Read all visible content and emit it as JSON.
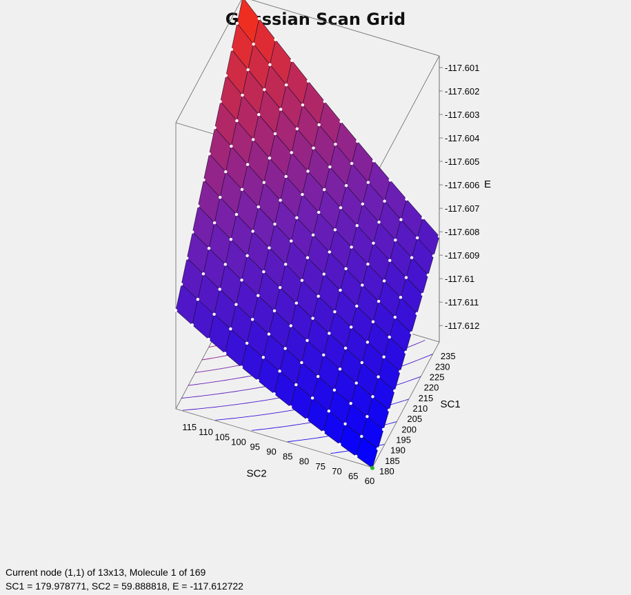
{
  "chart_data": {
    "type": "surface3d",
    "title": "Gaussian Scan Grid",
    "xlabel": "SC2",
    "ylabel": "SC1",
    "zlabel": "E",
    "grid_size": "13x13",
    "x_ticks": [
      "60",
      "65",
      "70",
      "75",
      "80",
      "85",
      "90",
      "95",
      "100",
      "105",
      "110",
      "115"
    ],
    "y_ticks": [
      "180",
      "185",
      "190",
      "195",
      "200",
      "205",
      "210",
      "215",
      "220",
      "225",
      "230",
      "235"
    ],
    "z_ticks": [
      "-117.601",
      "-117.602",
      "-117.603",
      "-117.604",
      "-117.605",
      "-117.606",
      "-117.607",
      "-117.608",
      "-117.609",
      "-117.61",
      "-117.611",
      "-117.612"
    ],
    "x_range": [
      60,
      120
    ],
    "y_range": [
      180,
      240
    ],
    "z_range": [
      -117.6127,
      -117.6005
    ],
    "corner_values": {
      "sc1_180_sc2_60": -117.612722,
      "sc1_180_sc2_120": -117.6085,
      "sc1_240_sc2_60": -117.6082,
      "sc1_240_sc2_120": -117.6005
    },
    "colormap": [
      "#0000ff",
      "#7020b0",
      "#ff3010"
    ],
    "current_node": {
      "sc1": 179.978771,
      "sc2": 59.888818,
      "e": -117.612722
    }
  },
  "status": {
    "line1": "Current node (1,1) of 13x13, Molecule 1 of 169",
    "line2": "SC1 = 179.978771, SC2 = 59.888818, E = -117.612722"
  }
}
